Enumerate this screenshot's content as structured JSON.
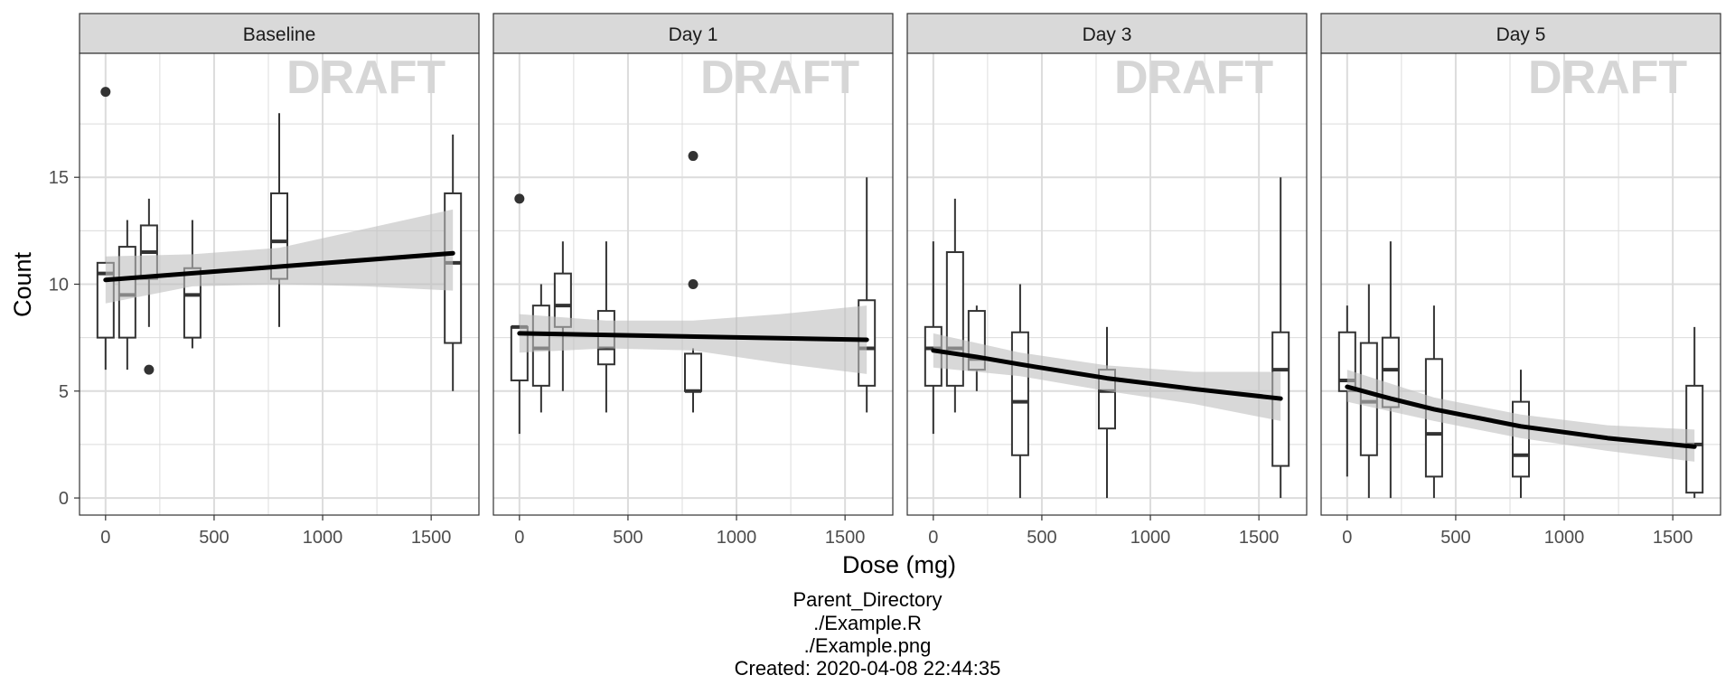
{
  "chart_data": {
    "type": "boxplot",
    "ylabel": "Count",
    "xlabel": "Dose (mg)",
    "watermark": "DRAFT",
    "xlim": [
      -120,
      1720
    ],
    "ylim": [
      -0.8,
      20.8
    ],
    "x_ticks": [
      0,
      500,
      1000,
      1500
    ],
    "x_tick_labels": [
      "0",
      "500",
      "1000",
      "1500"
    ],
    "y_ticks": [
      0,
      5,
      10,
      15
    ],
    "y_tick_labels": [
      "0",
      "5",
      "10",
      "15"
    ],
    "grid": true,
    "colors": {
      "strip_fill": "#d9d9d9",
      "grid": "#dcdcdc",
      "ribbon": "#bebebe",
      "line": "#000000",
      "box_stroke": "#333333",
      "watermark": "#d6d6d6"
    },
    "facets": [
      {
        "label": "Baseline",
        "boxes": [
          {
            "dose": 0,
            "min": 6,
            "q1": 7.5,
            "median": 10.5,
            "q3": 11,
            "max": 11,
            "outliers": [
              19
            ]
          },
          {
            "dose": 100,
            "min": 6,
            "q1": 7.5,
            "median": 9.5,
            "q3": 11.75,
            "max": 13,
            "outliers": []
          },
          {
            "dose": 200,
            "min": 8,
            "q1": 10.25,
            "median": 11.5,
            "q3": 12.75,
            "max": 14,
            "outliers": [
              6
            ]
          },
          {
            "dose": 400,
            "min": 7,
            "q1": 7.5,
            "median": 9.5,
            "q3": 10.75,
            "max": 13,
            "outliers": []
          },
          {
            "dose": 800,
            "min": 8,
            "q1": 10.25,
            "median": 12,
            "q3": 14.25,
            "max": 18,
            "outliers": []
          },
          {
            "dose": 1600,
            "min": 5,
            "q1": 7.25,
            "median": 11,
            "q3": 14.25,
            "max": 17,
            "outliers": []
          }
        ],
        "fit": {
          "x": [
            0,
            1600
          ],
          "y": [
            10.2,
            11.45
          ]
        },
        "ribbon": {
          "x": [
            0,
            400,
            800,
            1200,
            1600
          ],
          "lower": [
            9.1,
            9.9,
            10.0,
            9.9,
            9.7
          ],
          "upper": [
            11.3,
            11.4,
            11.7,
            12.6,
            13.5
          ]
        }
      },
      {
        "label": "Day 1",
        "boxes": [
          {
            "dose": 0,
            "min": 3,
            "q1": 5.5,
            "median": 8,
            "q3": 8,
            "max": 8,
            "outliers": [
              14
            ]
          },
          {
            "dose": 100,
            "min": 4,
            "q1": 5.25,
            "median": 7,
            "q3": 9,
            "max": 10,
            "outliers": []
          },
          {
            "dose": 200,
            "min": 5,
            "q1": 8,
            "median": 9,
            "q3": 10.5,
            "max": 12,
            "outliers": []
          },
          {
            "dose": 400,
            "min": 4,
            "q1": 6.25,
            "median": 7,
            "q3": 8.75,
            "max": 12,
            "outliers": []
          },
          {
            "dose": 800,
            "min": 4,
            "q1": 5,
            "median": 5,
            "q3": 6.75,
            "max": 7,
            "outliers": [
              16,
              10
            ]
          },
          {
            "dose": 1600,
            "min": 4,
            "q1": 5.25,
            "median": 7,
            "q3": 9.25,
            "max": 15,
            "outliers": []
          }
        ],
        "fit": {
          "x": [
            0,
            1600
          ],
          "y": [
            7.7,
            7.4
          ]
        },
        "ribbon": {
          "x": [
            0,
            400,
            800,
            1200,
            1600
          ],
          "lower": [
            6.8,
            7.0,
            6.9,
            6.3,
            5.8
          ],
          "upper": [
            8.6,
            8.3,
            8.3,
            8.6,
            9.0
          ]
        }
      },
      {
        "label": "Day 3",
        "boxes": [
          {
            "dose": 0,
            "min": 3,
            "q1": 5.25,
            "median": 7,
            "q3": 8,
            "max": 12,
            "outliers": []
          },
          {
            "dose": 100,
            "min": 4,
            "q1": 5.25,
            "median": 7,
            "q3": 11.5,
            "max": 14,
            "outliers": []
          },
          {
            "dose": 200,
            "min": 5,
            "q1": 6,
            "median": 6.5,
            "q3": 8.75,
            "max": 9,
            "outliers": []
          },
          {
            "dose": 400,
            "min": 0,
            "q1": 2,
            "median": 4.5,
            "q3": 7.75,
            "max": 10,
            "outliers": []
          },
          {
            "dose": 800,
            "min": 0,
            "q1": 3.25,
            "median": 5,
            "q3": 6,
            "max": 8,
            "outliers": []
          },
          {
            "dose": 1600,
            "min": 0,
            "q1": 1.5,
            "median": 6,
            "q3": 7.75,
            "max": 15,
            "outliers": []
          }
        ],
        "fit": {
          "x": [
            0,
            200,
            400,
            800,
            1200,
            1600
          ],
          "y": [
            6.9,
            6.6,
            6.25,
            5.6,
            5.1,
            4.65
          ]
        },
        "ribbon": {
          "x": [
            0,
            400,
            800,
            1200,
            1600
          ],
          "lower": [
            6.1,
            5.7,
            5.0,
            4.4,
            3.6
          ],
          "upper": [
            7.7,
            6.8,
            6.2,
            5.9,
            5.9
          ]
        }
      },
      {
        "label": "Day 5",
        "boxes": [
          {
            "dose": 0,
            "min": 1,
            "q1": 5,
            "median": 5.5,
            "q3": 7.75,
            "max": 9,
            "outliers": []
          },
          {
            "dose": 100,
            "min": 0,
            "q1": 2,
            "median": 4.5,
            "q3": 7.25,
            "max": 10,
            "outliers": []
          },
          {
            "dose": 200,
            "min": 0,
            "q1": 4.25,
            "median": 6,
            "q3": 7.5,
            "max": 12,
            "outliers": []
          },
          {
            "dose": 400,
            "min": 0,
            "q1": 1,
            "median": 3,
            "q3": 6.5,
            "max": 9,
            "outliers": []
          },
          {
            "dose": 800,
            "min": 0,
            "q1": 1,
            "median": 2,
            "q3": 4.5,
            "max": 6,
            "outliers": []
          },
          {
            "dose": 1600,
            "min": 0,
            "q1": 0.25,
            "median": 2.5,
            "q3": 5.25,
            "max": 8,
            "outliers": []
          }
        ],
        "fit": {
          "x": [
            0,
            200,
            400,
            800,
            1200,
            1600
          ],
          "y": [
            5.2,
            4.65,
            4.15,
            3.35,
            2.8,
            2.4
          ]
        },
        "ribbon": {
          "x": [
            0,
            400,
            800,
            1200,
            1600
          ],
          "lower": [
            4.5,
            3.6,
            2.8,
            2.2,
            1.7
          ],
          "upper": [
            6.0,
            4.7,
            3.9,
            3.4,
            3.2
          ]
        }
      }
    ]
  },
  "caption": {
    "line1": "Parent_Directory",
    "line2": "./Example.R",
    "line3": "./Example.png",
    "line4": "Created: 2020-04-08 22:44:35"
  }
}
